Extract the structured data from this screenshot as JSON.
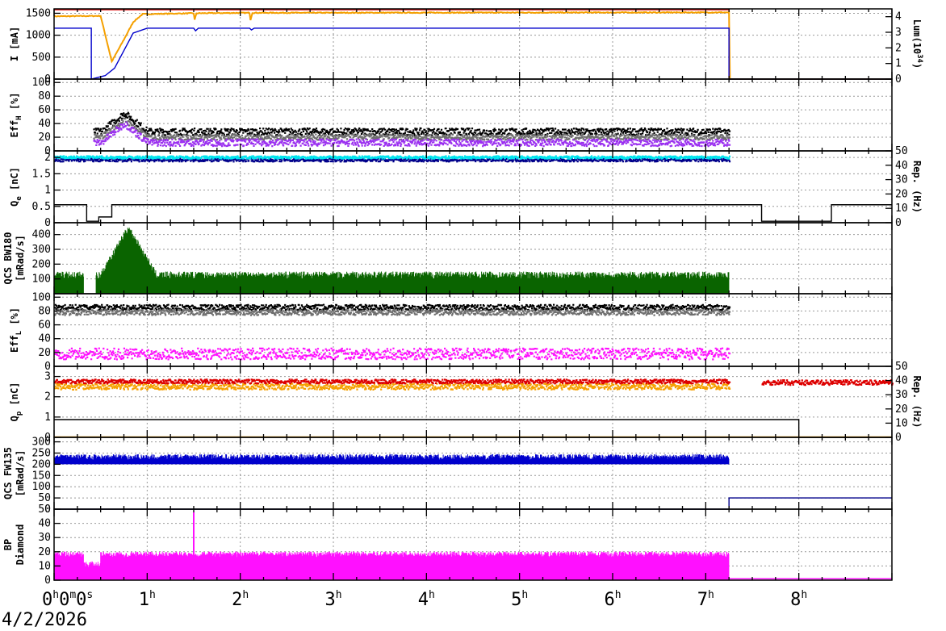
{
  "date": "4/2/2026",
  "x_ticks": [
    {
      "v": 0,
      "main": "0",
      "sup": "h"
    },
    {
      "v": 1,
      "main": "1",
      "sup": "h"
    },
    {
      "v": 2,
      "main": "2",
      "sup": "h"
    },
    {
      "v": 3,
      "main": "3",
      "sup": "h"
    },
    {
      "v": 4,
      "main": "4",
      "sup": "h"
    },
    {
      "v": 5,
      "main": "5",
      "sup": "h"
    },
    {
      "v": 6,
      "main": "6",
      "sup": "h"
    },
    {
      "v": 7,
      "main": "7",
      "sup": "h"
    },
    {
      "v": 8,
      "main": "8",
      "sup": "h"
    }
  ],
  "x_first_label": [
    "0",
    "h",
    "0",
    "m",
    "0",
    "s"
  ],
  "colors": {
    "red": "#dd0000",
    "orange": "#f5a000",
    "blue": "#0000cc",
    "black": "#000000",
    "gray": "#6e6e6e",
    "purple": "#9b30f0",
    "cyan": "#00e5ee",
    "navy": "#00008b",
    "green": "#0a6400",
    "magenta": "#ff10ff"
  },
  "chart_data": [
    {
      "type": "line",
      "panel": "current",
      "ylabel": "I [mA]",
      "ylabel_sub": "",
      "ylim": [
        0,
        1600
      ],
      "yticks": [
        0,
        500,
        1000,
        1500
      ],
      "y2label": "Lum(10",
      "y2label_sup": "34",
      "y2label_tail": ")",
      "y2lim": [
        0,
        4.5
      ],
      "y2ticks": [
        0,
        1,
        2,
        3,
        4
      ],
      "series": [
        {
          "color": "red",
          "kind": "step",
          "x": [
            0,
            7.25,
            7.25,
            9
          ],
          "y": [
            1580,
            1580,
            0,
            0
          ]
        },
        {
          "color": "orange",
          "kind": "noisy",
          "x": [
            0,
            0.5,
            0.62,
            0.75,
            0.85,
            0.95,
            1.5,
            1.51,
            1.53,
            2.1,
            2.11,
            2.13,
            7.25,
            7.25,
            9
          ],
          "y": [
            1430,
            1440,
            400,
            900,
            1300,
            1480,
            1500,
            1350,
            1500,
            1510,
            1350,
            1510,
            1520,
            0,
            0
          ],
          "noise": 20
        },
        {
          "color": "blue",
          "kind": "step",
          "x": [
            0,
            0.4,
            0.4,
            0.55,
            0.65,
            0.75,
            0.85,
            1.0,
            1.5,
            1.52,
            1.55,
            2.1,
            2.12,
            2.15,
            7.25,
            7.25,
            9
          ],
          "y": [
            1160,
            1160,
            0,
            80,
            250,
            650,
            1050,
            1160,
            1160,
            1100,
            1160,
            1160,
            1120,
            1160,
            1160,
            0,
            0
          ]
        }
      ]
    },
    {
      "type": "scatter",
      "panel": "effH",
      "ylabel": "Eff",
      "ylabel_sub": "H",
      "ylabel_tail": " [%]",
      "ylim": [
        0,
        105
      ],
      "yticks": [
        0,
        20,
        40,
        60,
        80,
        100
      ],
      "series": [
        {
          "color": "black",
          "x_range": [
            0.42,
            7.25
          ],
          "level": 28,
          "spread": 5,
          "bump": [
            0.75,
            55
          ]
        },
        {
          "color": "gray",
          "x_range": [
            0.42,
            7.25
          ],
          "level": 20,
          "spread": 4,
          "bump": [
            0.75,
            45
          ]
        },
        {
          "color": "purple",
          "x_range": [
            0.42,
            7.25
          ],
          "level": 12,
          "spread": 5,
          "bump": [
            0.75,
            40
          ]
        }
      ]
    },
    {
      "type": "scatter",
      "panel": "qe",
      "ylabel": "Q",
      "ylabel_sub": "e",
      "ylabel_tail": " [nC]",
      "ylim": [
        0,
        2.2
      ],
      "yticks": [
        0,
        0.5,
        1,
        1.5,
        2
      ],
      "y2label": "Rep. (Hz)",
      "y2lim": [
        0,
        50
      ],
      "y2ticks": [
        0,
        10,
        20,
        30,
        40,
        50
      ],
      "series": [
        {
          "color": "navy",
          "x_range": [
            0,
            7.25
          ],
          "level": 1.92,
          "spread": 0.05
        },
        {
          "color": "cyan",
          "x_range": [
            0,
            7.25
          ],
          "level": 2.0,
          "spread": 0.04
        },
        {
          "color": "black",
          "kind": "step",
          "x": [
            0,
            0.35,
            0.35,
            0.48,
            0.48,
            0.62,
            0.62,
            7.6,
            7.6,
            8.35,
            8.35,
            9
          ],
          "y": [
            12.5,
            12.5,
            1,
            1,
            4,
            4,
            12.5,
            12.5,
            1,
            1,
            12.5,
            12.5
          ],
          "axis": 2
        }
      ]
    },
    {
      "type": "bar",
      "panel": "qcs180",
      "ylabel": "QCS BW180",
      "ylabel2": "[mRad/s]",
      "ylim": [
        0,
        480
      ],
      "yticks": [
        100,
        200,
        300,
        400
      ],
      "series": [
        {
          "color": "green",
          "x_range": [
            0,
            7.25
          ],
          "level": 110,
          "spread": 50,
          "bump": [
            0.8,
            320
          ],
          "gap": [
            0.32,
            0.45
          ]
        }
      ]
    },
    {
      "type": "scatter",
      "panel": "effL",
      "ylabel": "Eff",
      "ylabel_sub": "L",
      "ylabel_tail": " [%]",
      "ylim": [
        0,
        105
      ],
      "yticks": [
        0,
        20,
        40,
        60,
        80,
        100
      ],
      "series": [
        {
          "color": "black",
          "x_range": [
            0,
            7.25
          ],
          "level": 85,
          "spread": 4
        },
        {
          "color": "gray",
          "x_range": [
            0,
            7.25
          ],
          "level": 78,
          "spread": 4
        },
        {
          "color": "magenta",
          "x_range": [
            0,
            7.25
          ],
          "level": 18,
          "spread": 8
        }
      ]
    },
    {
      "type": "scatter",
      "panel": "qp",
      "ylabel": "Q",
      "ylabel_sub": "p",
      "ylabel_tail": " [nC]",
      "ylim": [
        0,
        3.5
      ],
      "yticks": [
        0,
        1,
        2,
        3
      ],
      "y2label": "Rep. (Hz)",
      "y2lim": [
        0,
        50
      ],
      "y2ticks": [
        0,
        10,
        20,
        30,
        40,
        50
      ],
      "series": [
        {
          "color": "orange",
          "x_range": [
            0,
            7.25
          ],
          "level": 2.5,
          "spread": 0.15
        },
        {
          "color": "red",
          "x_range": [
            0,
            7.25
          ],
          "level": 2.75,
          "spread": 0.1
        },
        {
          "color": "red",
          "x_range": [
            7.6,
            9
          ],
          "level": 2.7,
          "spread": 0.12
        },
        {
          "color": "black",
          "kind": "step",
          "x": [
            0,
            8.0,
            8.0,
            9
          ],
          "y": [
            12.5,
            12.5,
            0,
            0
          ],
          "axis": 2
        },
        {
          "color": "orange",
          "kind": "step",
          "x": [
            0,
            9
          ],
          "y": [
            0.3,
            0.3
          ],
          "axis": 2
        }
      ]
    },
    {
      "type": "bar",
      "panel": "qcs135",
      "ylabel": "QCS FW135",
      "ylabel2": "[mRad/s]",
      "ylim": [
        0,
        320
      ],
      "yticks": [
        0,
        50,
        100,
        150,
        200,
        250,
        300
      ],
      "series": [
        {
          "color": "blue",
          "x_range": [
            0,
            7.25
          ],
          "level": 225,
          "spread": 25
        },
        {
          "color": "navy",
          "kind": "step",
          "x": [
            0,
            7.25,
            7.25,
            9
          ],
          "y": [
            0,
            0,
            50,
            50
          ]
        }
      ]
    },
    {
      "type": "bar",
      "panel": "bp",
      "ylabel": "BP",
      "ylabel2": "Diamond",
      "ylim": [
        0,
        50
      ],
      "yticks": [
        0,
        10,
        20,
        30,
        40,
        50
      ],
      "series": [
        {
          "color": "magenta",
          "x_range": [
            0,
            7.25
          ],
          "level": 17,
          "spread": 4,
          "dip": [
            0.32,
            0.5,
            10
          ],
          "spike": [
            1.5,
            48
          ]
        },
        {
          "color": "magenta",
          "kind": "step",
          "x": [
            7.25,
            9
          ],
          "y": [
            1,
            1
          ]
        }
      ]
    }
  ]
}
